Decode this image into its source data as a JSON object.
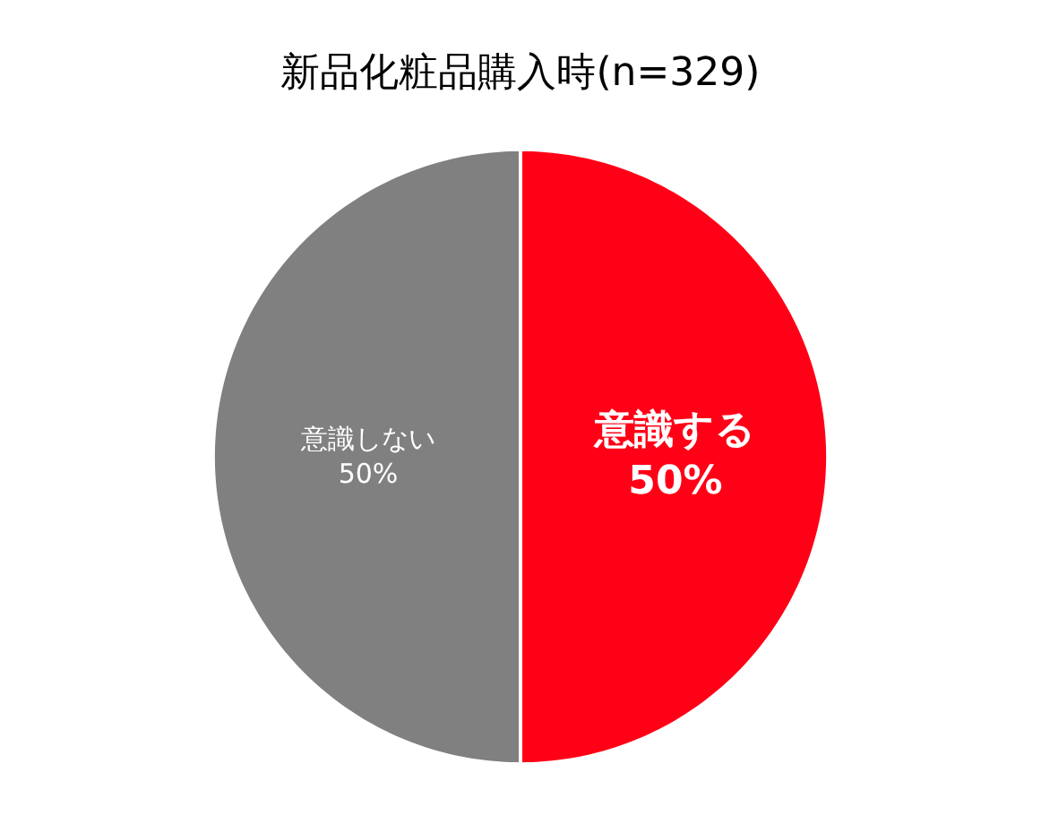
{
  "chart_data": {
    "type": "pie",
    "title": "新品化粧品購入時(n=329)",
    "categories": [
      "意識する",
      "意識しない"
    ],
    "values": [
      50,
      50
    ],
    "value_labels": [
      "50%",
      "50%"
    ],
    "colors": [
      "#ff0016",
      "#808080"
    ]
  }
}
